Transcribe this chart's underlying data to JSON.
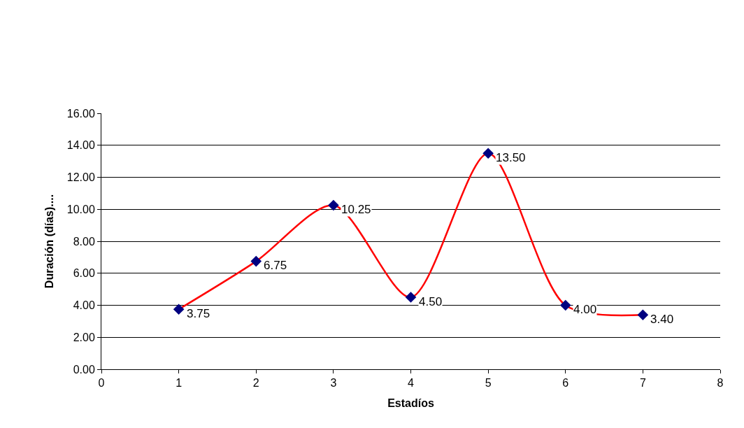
{
  "chart_data": {
    "type": "line",
    "xlabel": "Estadíos",
    "ylabel": "Duración (días)....",
    "x": [
      1,
      2,
      3,
      4,
      5,
      6,
      7
    ],
    "series": [
      {
        "color": "#ff0000",
        "colors": [
          "#000080",
          "#000080",
          "#000080",
          "#000080",
          "#000080",
          "#000080",
          "#000080"
        ],
        "values": [
          3.75,
          6.75,
          10.25,
          4.5,
          13.5,
          4.0,
          3.4
        ],
        "value_labels": [
          "3.75",
          "6.75",
          "10.25",
          "4.50",
          "13.50",
          "4.00",
          "3.40"
        ]
      }
    ],
    "xlim": [
      0,
      8
    ],
    "xticks": [
      0,
      1,
      2,
      3,
      4,
      5,
      6,
      7,
      8
    ],
    "ylim": [
      0,
      16
    ],
    "yticks": [
      {
        "value": 0,
        "label": "0.00"
      },
      {
        "value": 2,
        "label": "2.00"
      },
      {
        "value": 4,
        "label": "4.00"
      },
      {
        "value": 6,
        "label": "6.00"
      },
      {
        "value": 8,
        "label": "8.00"
      },
      {
        "value": 10,
        "label": "10.00"
      },
      {
        "value": 12,
        "label": "12.00"
      },
      {
        "value": 14,
        "label": "14.00"
      },
      {
        "value": 16,
        "label": "16.00"
      }
    ],
    "grid": "y",
    "marker": "diamond",
    "line_style": "solid"
  }
}
